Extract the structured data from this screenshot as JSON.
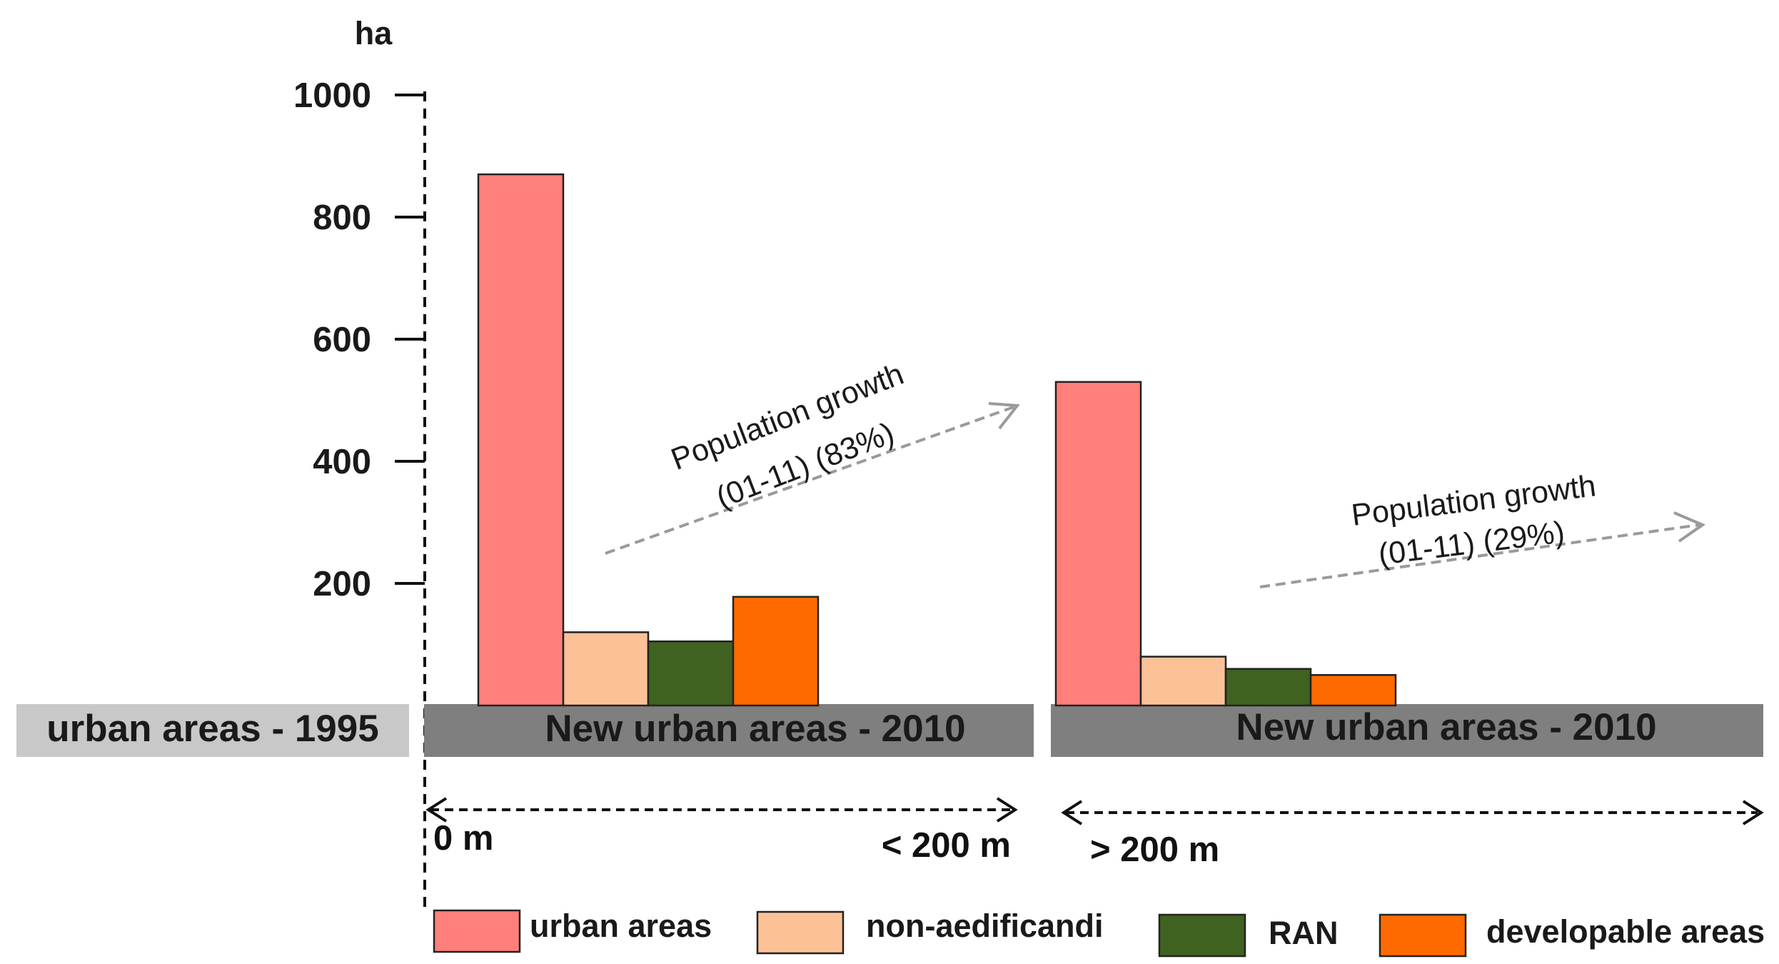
{
  "chart_data": {
    "type": "bar",
    "ylabel": "ha",
    "ylim": [
      0,
      1000
    ],
    "yticks": [
      200,
      400,
      600,
      800,
      1000
    ],
    "baseline_label": "urban areas - 1995",
    "groups": [
      {
        "label": "New urban areas - 2010",
        "distance_start": "0 m",
        "distance_end": "< 200 m",
        "annotation_line1": "Population growth",
        "annotation_line2": "(01-11) (83%)",
        "values": [
          870,
          120,
          105,
          178
        ]
      },
      {
        "label": "New urban areas - 2010",
        "distance_start": "> 200 m",
        "annotation_line1": "Population growth",
        "annotation_line2": "(01-11) (29%)",
        "values": [
          530,
          80,
          60,
          50
        ]
      }
    ],
    "series": [
      {
        "name": "urban areas",
        "color": "#ff7f7a"
      },
      {
        "name": "non-aedificandi",
        "color": "#fcc197"
      },
      {
        "name": "RAN",
        "color": "#3f6220"
      },
      {
        "name": "developable areas",
        "color": "#ff6a00"
      }
    ]
  }
}
